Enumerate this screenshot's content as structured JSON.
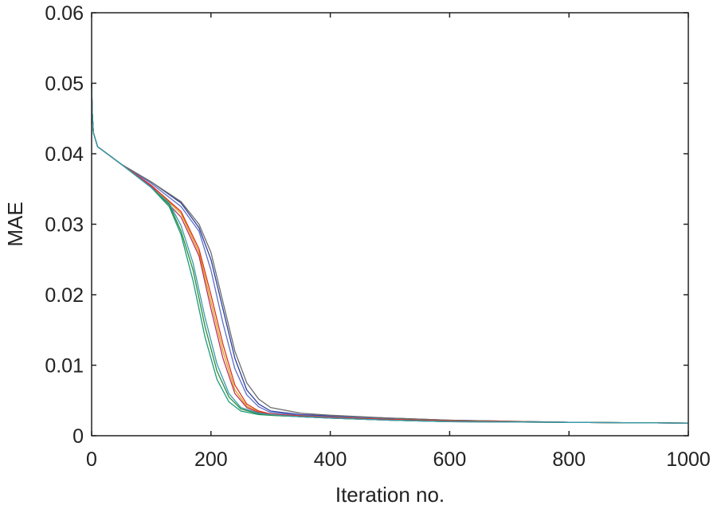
{
  "chart_data": {
    "type": "line",
    "title": "",
    "xlabel": "Iteration no.",
    "ylabel": "MAE",
    "xlim": [
      0,
      1000
    ],
    "ylim": [
      0,
      0.06
    ],
    "xticks": [
      0,
      200,
      400,
      600,
      800,
      1000
    ],
    "yticks": [
      0,
      0.01,
      0.02,
      0.03,
      0.04,
      0.05,
      0.06
    ],
    "xtick_labels": [
      "0",
      "200",
      "400",
      "600",
      "800",
      "1000"
    ],
    "ytick_labels": [
      "0",
      "0.01",
      "0.02",
      "0.03",
      "0.04",
      "0.05",
      "0.06"
    ],
    "grid": false,
    "legend": "none",
    "series": [
      {
        "color": "#2b3f9e",
        "x": [
          0,
          1,
          3,
          10,
          50,
          100,
          150,
          180,
          200,
          220,
          240,
          260,
          280,
          300,
          350,
          400,
          500,
          600,
          800,
          1000
        ],
        "y": [
          0.05,
          0.046,
          0.043,
          0.041,
          0.0385,
          0.036,
          0.033,
          0.0295,
          0.025,
          0.018,
          0.011,
          0.0065,
          0.0045,
          0.0035,
          0.003,
          0.0028,
          0.0025,
          0.0022,
          0.0019,
          0.0018
        ]
      },
      {
        "color": "#5a6fc7",
        "x": [
          0,
          1,
          3,
          10,
          50,
          100,
          150,
          180,
          200,
          220,
          240,
          260,
          280,
          300,
          350,
          400,
          500,
          600,
          800,
          1000
        ],
        "y": [
          0.05,
          0.046,
          0.043,
          0.041,
          0.0385,
          0.0358,
          0.0325,
          0.029,
          0.0235,
          0.016,
          0.0095,
          0.0058,
          0.0041,
          0.0033,
          0.0029,
          0.0027,
          0.0024,
          0.0021,
          0.0019,
          0.0018
        ]
      },
      {
        "color": "#6b6b6b",
        "x": [
          0,
          1,
          3,
          10,
          50,
          100,
          150,
          180,
          200,
          220,
          240,
          260,
          280,
          300,
          350,
          400,
          500,
          600,
          800,
          1000
        ],
        "y": [
          0.05,
          0.046,
          0.043,
          0.041,
          0.0385,
          0.036,
          0.0332,
          0.03,
          0.026,
          0.019,
          0.012,
          0.0075,
          0.0052,
          0.004,
          0.0032,
          0.0029,
          0.0025,
          0.0022,
          0.0019,
          0.0018
        ]
      },
      {
        "color": "#d4a017",
        "x": [
          0,
          1,
          3,
          10,
          50,
          100,
          150,
          180,
          200,
          220,
          240,
          260,
          280,
          300,
          350,
          400,
          500,
          600,
          800,
          1000
        ],
        "y": [
          0.05,
          0.046,
          0.043,
          0.041,
          0.0385,
          0.0355,
          0.0315,
          0.026,
          0.019,
          0.012,
          0.0065,
          0.0042,
          0.0034,
          0.003,
          0.0028,
          0.0026,
          0.0023,
          0.0021,
          0.0019,
          0.0018
        ]
      },
      {
        "color": "#e0301e",
        "x": [
          0,
          1,
          3,
          10,
          50,
          100,
          150,
          180,
          200,
          220,
          240,
          260,
          280,
          300,
          350,
          400,
          500,
          600,
          800,
          1000
        ],
        "y": [
          0.05,
          0.046,
          0.043,
          0.041,
          0.0385,
          0.0355,
          0.0318,
          0.0265,
          0.02,
          0.013,
          0.0072,
          0.0045,
          0.0035,
          0.0031,
          0.0028,
          0.0026,
          0.0023,
          0.0021,
          0.0019,
          0.0018
        ]
      },
      {
        "color": "#c03060",
        "x": [
          0,
          1,
          3,
          10,
          50,
          100,
          150,
          180,
          200,
          220,
          240,
          260,
          280,
          300,
          350,
          400,
          500,
          600,
          800,
          1000
        ],
        "y": [
          0.05,
          0.046,
          0.043,
          0.041,
          0.0385,
          0.0354,
          0.031,
          0.0255,
          0.018,
          0.011,
          0.006,
          0.004,
          0.0033,
          0.003,
          0.0027,
          0.0025,
          0.0022,
          0.002,
          0.0019,
          0.0018
        ]
      },
      {
        "color": "#1a9a7a",
        "x": [
          0,
          1,
          3,
          10,
          50,
          100,
          130,
          150,
          170,
          190,
          210,
          230,
          250,
          280,
          300,
          350,
          400,
          500,
          600,
          800,
          1000
        ],
        "y": [
          0.05,
          0.046,
          0.043,
          0.041,
          0.0385,
          0.0352,
          0.0325,
          0.0285,
          0.022,
          0.014,
          0.008,
          0.0048,
          0.0035,
          0.003,
          0.0029,
          0.0027,
          0.0025,
          0.0022,
          0.002,
          0.0019,
          0.0018
        ]
      },
      {
        "color": "#2e8b3a",
        "x": [
          0,
          1,
          3,
          10,
          50,
          100,
          130,
          150,
          170,
          190,
          210,
          230,
          250,
          280,
          300,
          350,
          400,
          500,
          600,
          800,
          1000
        ],
        "y": [
          0.05,
          0.046,
          0.043,
          0.041,
          0.0385,
          0.0352,
          0.0328,
          0.029,
          0.0235,
          0.0155,
          0.0092,
          0.0055,
          0.0038,
          0.0031,
          0.0029,
          0.0027,
          0.0025,
          0.0022,
          0.002,
          0.0019,
          0.0018
        ]
      },
      {
        "color": "#3a9ab0",
        "x": [
          0,
          1,
          3,
          10,
          50,
          100,
          130,
          150,
          170,
          190,
          210,
          230,
          250,
          280,
          300,
          350,
          400,
          500,
          600,
          800,
          1000
        ],
        "y": [
          0.05,
          0.046,
          0.043,
          0.041,
          0.0385,
          0.0352,
          0.033,
          0.0298,
          0.0245,
          0.0168,
          0.0102,
          0.006,
          0.004,
          0.0032,
          0.003,
          0.0027,
          0.0025,
          0.0022,
          0.002,
          0.0019,
          0.0018
        ]
      }
    ]
  }
}
